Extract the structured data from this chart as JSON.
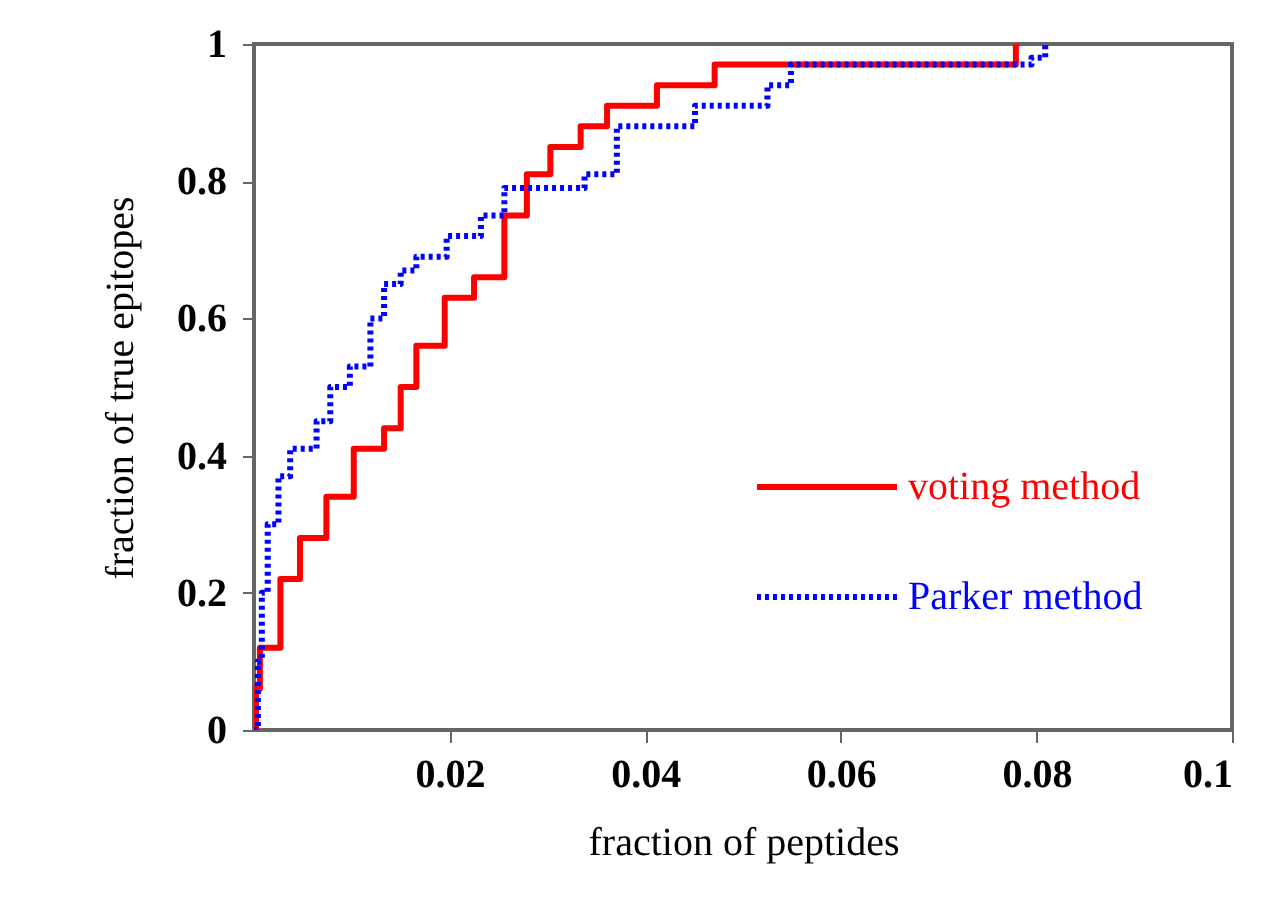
{
  "chart_data": {
    "type": "step",
    "xlabel": "fraction of peptides",
    "ylabel": "fraction of true epitopes",
    "xlim": [
      0,
      0.1
    ],
    "xticks": [
      0.02,
      0.04,
      0.06,
      0.08,
      0.1
    ],
    "ylim": [
      0,
      1
    ],
    "yticks": [
      0,
      0.2,
      0.4,
      0.6,
      0.8,
      1
    ],
    "grid": false,
    "legend": "right",
    "series": [
      {
        "name": "voting method",
        "color": "#ff0000",
        "line_style": "solid",
        "x": [
          0,
          0.0002,
          0.0006,
          0.0027,
          0.0047,
          0.0074,
          0.0102,
          0.0133,
          0.015,
          0.0166,
          0.0195,
          0.0225,
          0.0256,
          0.0279,
          0.0303,
          0.0334,
          0.0361,
          0.0412,
          0.0471,
          0.0779
        ],
        "values": [
          0,
          0.06,
          0.12,
          0.22,
          0.28,
          0.34,
          0.41,
          0.44,
          0.5,
          0.56,
          0.63,
          0.66,
          0.75,
          0.81,
          0.85,
          0.88,
          0.91,
          0.94,
          0.97,
          1
        ]
      },
      {
        "name": "Parker method",
        "color": "#0000ff",
        "line_style": "dotted",
        "x": [
          0,
          0.0004,
          0.0008,
          0.0014,
          0.0025,
          0.0037,
          0.0064,
          0.0078,
          0.0098,
          0.0119,
          0.0133,
          0.015,
          0.0166,
          0.0197,
          0.0232,
          0.0256,
          0.0338,
          0.0371,
          0.0451,
          0.0525,
          0.0549,
          0.0795,
          0.0809
        ],
        "values": [
          0,
          0.1,
          0.2,
          0.3,
          0.37,
          0.41,
          0.45,
          0.5,
          0.53,
          0.6,
          0.65,
          0.67,
          0.69,
          0.72,
          0.75,
          0.79,
          0.81,
          0.88,
          0.91,
          0.94,
          0.97,
          0.98,
          1
        ]
      }
    ]
  }
}
